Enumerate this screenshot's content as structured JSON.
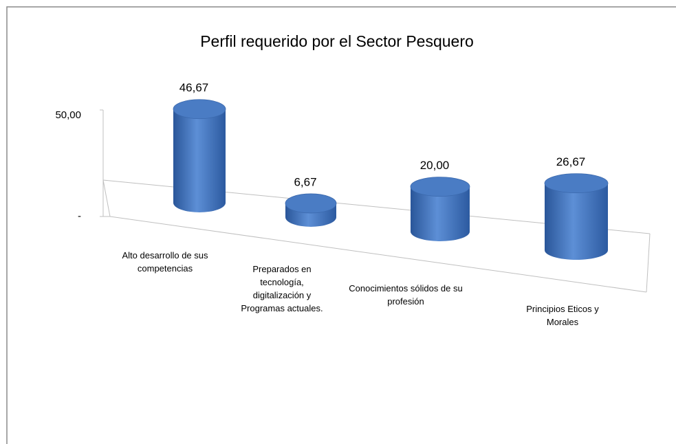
{
  "chart_data": {
    "type": "bar3d",
    "title": "Perfil requerido por el Sector Pesquero",
    "categories": [
      "Alto desarrollo de sus competencias",
      "Preparados en tecnología, digitalización y Programas actuales.",
      "Conocimientos sólidos de su profesión",
      "Principios Eticos y Morales"
    ],
    "values": [
      46.67,
      6.67,
      20.0,
      26.67
    ],
    "value_labels": [
      "46,67",
      "6,67",
      "20,00",
      "26,67"
    ],
    "color": "#4a7cc4",
    "ylim": [
      0,
      50
    ],
    "yticks": [
      {
        "value": 0,
        "label": "-"
      },
      {
        "value": 50,
        "label": "50,00"
      }
    ]
  }
}
